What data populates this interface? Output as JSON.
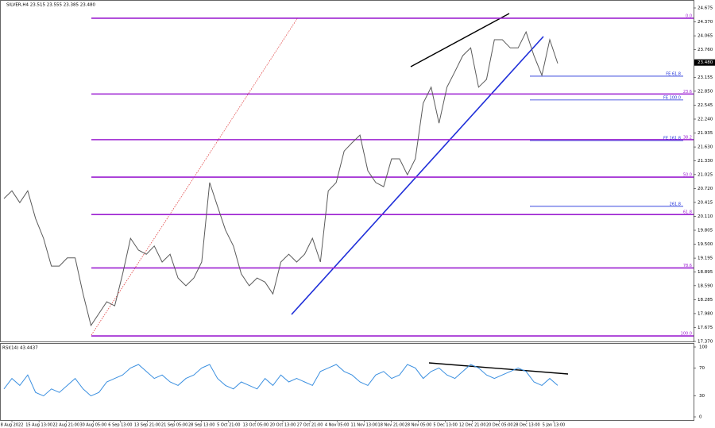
{
  "header": "SILVER,H4 23.515 23.555 23.385 23.480",
  "current_price": {
    "value": 23.48,
    "label": "23.480"
  },
  "chart_data": {
    "type": "line",
    "color": "#5a5a5a",
    "ylim": [
      17.37,
      24.675
    ],
    "yticks": [
      {
        "value": 24.675,
        "label": "24.675"
      },
      {
        "value": 24.37,
        "label": "24.370"
      },
      {
        "value": 24.065,
        "label": "24.065"
      },
      {
        "value": 23.76,
        "label": "23.760"
      },
      {
        "value": 23.155,
        "label": "23.155"
      },
      {
        "value": 22.85,
        "label": "22.850"
      },
      {
        "value": 22.545,
        "label": "22.545"
      },
      {
        "value": 22.24,
        "label": "22.240"
      },
      {
        "value": 21.935,
        "label": "21.935"
      },
      {
        "value": 21.63,
        "label": "21.630"
      },
      {
        "value": 21.33,
        "label": "21.330"
      },
      {
        "value": 21.025,
        "label": "21.025"
      },
      {
        "value": 20.72,
        "label": "20.720"
      },
      {
        "value": 20.415,
        "label": "20.415"
      },
      {
        "value": 20.11,
        "label": "20.110"
      },
      {
        "value": 19.805,
        "label": "19.805"
      },
      {
        "value": 19.5,
        "label": "19.500"
      },
      {
        "value": 19.195,
        "label": "19.195"
      },
      {
        "value": 18.895,
        "label": "18.895"
      },
      {
        "value": 18.59,
        "label": "18.590"
      },
      {
        "value": 18.285,
        "label": "18.285"
      },
      {
        "value": 17.98,
        "label": "17.980"
      },
      {
        "value": 17.675,
        "label": "17.675"
      },
      {
        "value": 17.37,
        "label": "17.370"
      }
    ],
    "values": [
      20.5,
      20.67,
      20.41,
      20.67,
      20.06,
      19.63,
      19.02,
      19.02,
      19.2,
      19.2,
      18.41,
      17.72,
      17.98,
      18.24,
      18.15,
      18.85,
      19.63,
      19.37,
      19.28,
      19.46,
      19.11,
      19.28,
      18.76,
      18.59,
      18.76,
      19.11,
      20.85,
      20.33,
      19.81,
      19.46,
      18.85,
      18.59,
      18.76,
      18.67,
      18.41,
      19.11,
      19.28,
      19.11,
      19.28,
      19.63,
      19.11,
      20.67,
      20.85,
      21.54,
      21.72,
      21.89,
      21.11,
      20.85,
      20.76,
      21.37,
      21.37,
      21.02,
      21.37,
      22.59,
      22.94,
      22.15,
      22.94,
      23.28,
      23.63,
      23.8,
      22.94,
      23.11,
      23.98,
      23.98,
      23.8,
      23.8,
      24.15,
      23.63,
      23.2,
      23.98,
      23.46
    ],
    "time_labels": [
      "8 Aug 2022",
      "15 Aug 13:00",
      "22 Aug 21:00",
      "30 Aug 05:00",
      "6 Sep 13:00",
      "13 Sep 21:00",
      "21 Sep 05:00",
      "28 Sep 13:00",
      "5 Oct 21:00",
      "13 Oct 05:00",
      "20 Oct 13:00",
      "27 Oct 21:00",
      "4 Nov 05:00",
      "11 Nov 13:00",
      "18 Nov 21:00",
      "28 Nov 05:00",
      "5 Dec 13:00",
      "12 Dec 21:00",
      "20 Dec 05:00",
      "28 Dec 13:00",
      "5 Jan 13:00"
    ],
    "fib_levels": [
      {
        "label": "0.0",
        "price": 24.45
      },
      {
        "label": "23.6",
        "price": 22.79
      },
      {
        "label": "38.2",
        "price": 21.79
      },
      {
        "label": "50.0",
        "price": 20.97
      },
      {
        "label": "61.8",
        "price": 20.15
      },
      {
        "label": "78.6",
        "price": 18.98
      },
      {
        "label": "100.0",
        "price": 17.49
      }
    ],
    "fe_levels": [
      {
        "label": "FE 61.8",
        "price": 23.18
      },
      {
        "label": "FE 100.0",
        "price": 22.66
      },
      {
        "label": "FE 161.8",
        "price": 21.77
      },
      {
        "label": "261.8",
        "price": 20.33
      }
    ]
  },
  "rsi": {
    "label": "RSI(14) 43.4437",
    "color": "#3a8fe0",
    "ylim": [
      0,
      100
    ],
    "yticks": [
      100,
      70,
      30,
      0
    ],
    "values": [
      40,
      55,
      45,
      60,
      35,
      30,
      40,
      35,
      45,
      55,
      40,
      30,
      35,
      50,
      55,
      60,
      70,
      75,
      65,
      55,
      60,
      50,
      45,
      55,
      60,
      70,
      75,
      55,
      45,
      40,
      50,
      45,
      40,
      55,
      45,
      60,
      50,
      55,
      50,
      45,
      65,
      70,
      75,
      65,
      60,
      50,
      45,
      60,
      65,
      55,
      60,
      75,
      70,
      55,
      65,
      70,
      60,
      55,
      65,
      75,
      70,
      60,
      55,
      60,
      65,
      70,
      65,
      50,
      45,
      55,
      45
    ]
  }
}
